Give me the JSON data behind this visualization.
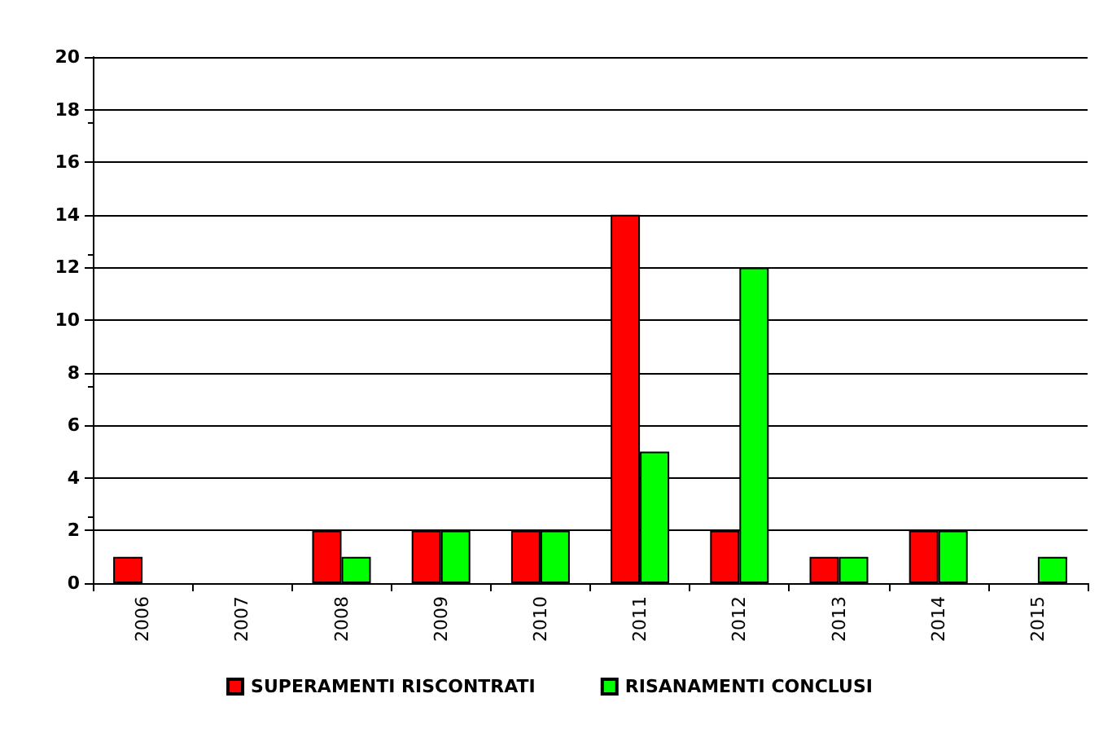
{
  "chart_data": {
    "type": "bar",
    "categories": [
      "2006",
      "2007",
      "2008",
      "2009",
      "2010",
      "2011",
      "2012",
      "2013",
      "2014",
      "2015"
    ],
    "series": [
      {
        "name": "SUPERAMENTI RISCONTRATI",
        "color": "#ff0000",
        "values": [
          1,
          0,
          2,
          2,
          2,
          14,
          2,
          1,
          2,
          0
        ]
      },
      {
        "name": "RISANAMENTI CONCLUSI",
        "color": "#00ff00",
        "values": [
          0,
          0,
          1,
          2,
          2,
          5,
          12,
          1,
          2,
          1
        ]
      }
    ],
    "ylim": [
      0,
      20
    ],
    "yticks": [
      0,
      2,
      4,
      6,
      8,
      10,
      12,
      14,
      16,
      18,
      20
    ],
    "grid": "y",
    "legend": "bottom"
  }
}
